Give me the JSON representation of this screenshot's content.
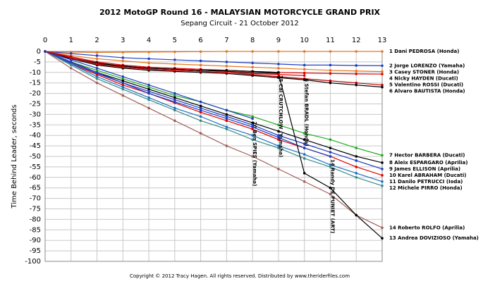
{
  "chart_data": {
    "type": "line",
    "title": "2012 MotoGP Round 16 - MALAYSIAN MOTORCYCLE GRAND PRIX",
    "subtitle": "Sepang Circuit - 21 October 2012",
    "y_label": "Time Behind Leader, seconds",
    "footer": "Copyright © 2012 Tracy Hagen. All rights reserved. Distributed by www.theriderfiles.com",
    "x": [
      0,
      1,
      2,
      3,
      4,
      5,
      6,
      7,
      8,
      9,
      10,
      11,
      12,
      13
    ],
    "xlim": [
      0,
      13
    ],
    "xticks": [
      0,
      1,
      2,
      3,
      4,
      5,
      6,
      7,
      8,
      9,
      10,
      11,
      12,
      13
    ],
    "ylim": [
      -100,
      0
    ],
    "yticks": [
      0,
      -5,
      -10,
      -15,
      -20,
      -25,
      -30,
      -35,
      -40,
      -45,
      -50,
      -55,
      -60,
      -65,
      -70,
      -75,
      -80,
      -85,
      -90,
      -95,
      -100
    ],
    "grid": true,
    "series": [
      {
        "name": "1 Dani PEDROSA (Honda)",
        "color": "#e87722",
        "values": [
          0,
          -0.3,
          -0.5,
          -0.4,
          -0.3,
          -0.2,
          -0.1,
          0,
          0,
          0,
          0,
          0,
          0,
          0
        ]
      },
      {
        "name": "2 Jorge LORENZO (Yamaha)",
        "color": "#1f3fbf",
        "values": [
          0,
          -1,
          -2,
          -3,
          -3.5,
          -4,
          -4.5,
          -5,
          -5.5,
          -6,
          -6.5,
          -6.5,
          -6.7,
          -6.8
        ]
      },
      {
        "name": "3 Casey STONER (Honda)",
        "color": "#e87722",
        "values": [
          0,
          -2,
          -3.5,
          -4.5,
          -5.5,
          -6,
          -6.5,
          -7,
          -7.5,
          -8,
          -8.5,
          -9,
          -9.3,
          -9.6
        ]
      },
      {
        "name": "4 Nicky HAYDEN (Ducati)",
        "color": "#e00000",
        "values": [
          0,
          -2.5,
          -5,
          -6.5,
          -7.5,
          -8,
          -8.5,
          -9,
          -9.5,
          -10,
          -10.3,
          -10.5,
          -10.7,
          -10.8
        ]
      },
      {
        "name": "5 Valentino ROSSI (Ducati)",
        "color": "#c00000",
        "values": [
          0,
          -3,
          -6,
          -7.5,
          -8.5,
          -9,
          -9.5,
          -10,
          -11,
          -12,
          -13,
          -14,
          -15,
          -16
        ]
      },
      {
        "name": "6 Alvaro BAUTISTA (Honda)",
        "color": "#000000",
        "values": [
          0,
          -3.5,
          -6.5,
          -8,
          -9,
          -9.5,
          -10,
          -10.5,
          -11.5,
          -12.5,
          -13.5,
          -15,
          -16,
          -17
        ]
      },
      {
        "name": "7 Hector BARBERA (Ducati)",
        "color": "#22aa22",
        "values": [
          0,
          -5,
          -9,
          -13,
          -17,
          -21,
          -24,
          -28,
          -31,
          -35,
          -39,
          -42,
          -46,
          -49.5
        ]
      },
      {
        "name": "8 Aleix ESPARGARO (Aprilia)",
        "color": "#000000",
        "values": [
          0,
          -5,
          -10,
          -14,
          -18,
          -22,
          -26,
          -30,
          -34,
          -38,
          -42,
          -46,
          -50,
          -53
        ]
      },
      {
        "name": "9 James ELLISON (Aprilia)",
        "color": "#1f3fbf",
        "values": [
          0,
          -5.5,
          -10.5,
          -15,
          -19,
          -23,
          -27,
          -31,
          -35,
          -40,
          -44,
          -48,
          -52,
          -56
        ]
      },
      {
        "name": "10 Karel ABRAHAM (Ducati)",
        "color": "#e00000",
        "values": [
          0,
          -6,
          -11,
          -16,
          -20,
          -24.5,
          -29,
          -33,
          -37,
          -42,
          -46,
          -50,
          -55,
          -59
        ]
      },
      {
        "name": "11 Danilo PETRUCCI (Ioda)",
        "color": "#1f6fbf",
        "values": [
          0,
          -6,
          -12,
          -17,
          -22,
          -27,
          -31,
          -36,
          -40,
          -45,
          -49,
          -54,
          -58,
          -62
        ]
      },
      {
        "name": "12 Michele PIRRO (Honda)",
        "color": "#3a8a8a",
        "values": [
          0,
          -6.5,
          -13,
          -18,
          -23,
          -28,
          -33,
          -37,
          -42,
          -46,
          -51,
          -55,
          -60,
          -64
        ]
      },
      {
        "name": "14 Roberto ROLFO (Aprilia)",
        "color": "#a0605a",
        "values": [
          0,
          -8,
          -15,
          -21,
          -27,
          -33,
          -39,
          -45,
          -50,
          -56,
          -62,
          -68,
          -78,
          -84
        ]
      },
      {
        "name": "13 Andrea DOVIZIOSO (Yamaha)",
        "color": "#000000",
        "values": [
          0,
          -3,
          -5.5,
          -7,
          -8,
          -8.5,
          -9,
          -9.5,
          -10,
          -10.5,
          -58,
          -65,
          -78,
          -89
        ]
      },
      {
        "name": "20 Ben SPIES (Yamaha)",
        "color": "#1f3fbf",
        "values": [
          0,
          -4,
          -8,
          -12,
          -16,
          -20,
          -24,
          -28,
          -32,
          null,
          null,
          null,
          null,
          null
        ]
      },
      {
        "name": "35 Cal CRUTCHLOW (Yamaha)",
        "color": "#000000",
        "values": [
          0,
          -3,
          -6,
          -7,
          -8,
          -8.5,
          -9,
          -9,
          -9.5,
          -10,
          null,
          null,
          null,
          null
        ]
      },
      {
        "name": "6 Stefan BRADL (Honda)",
        "color": "#e00000",
        "values": [
          0,
          -3,
          -6,
          -7.5,
          -8.5,
          -9,
          -9.5,
          -10,
          -10.5,
          -11,
          -11.5,
          null,
          null,
          null
        ]
      },
      {
        "name": "14 Randy DE PUNIET (ART)",
        "color": "#1f3fbf",
        "values": [
          0,
          -5,
          -10,
          -15,
          -20,
          -24,
          -28,
          -32,
          -36,
          -41,
          -46,
          -50,
          null,
          null
        ]
      }
    ]
  }
}
